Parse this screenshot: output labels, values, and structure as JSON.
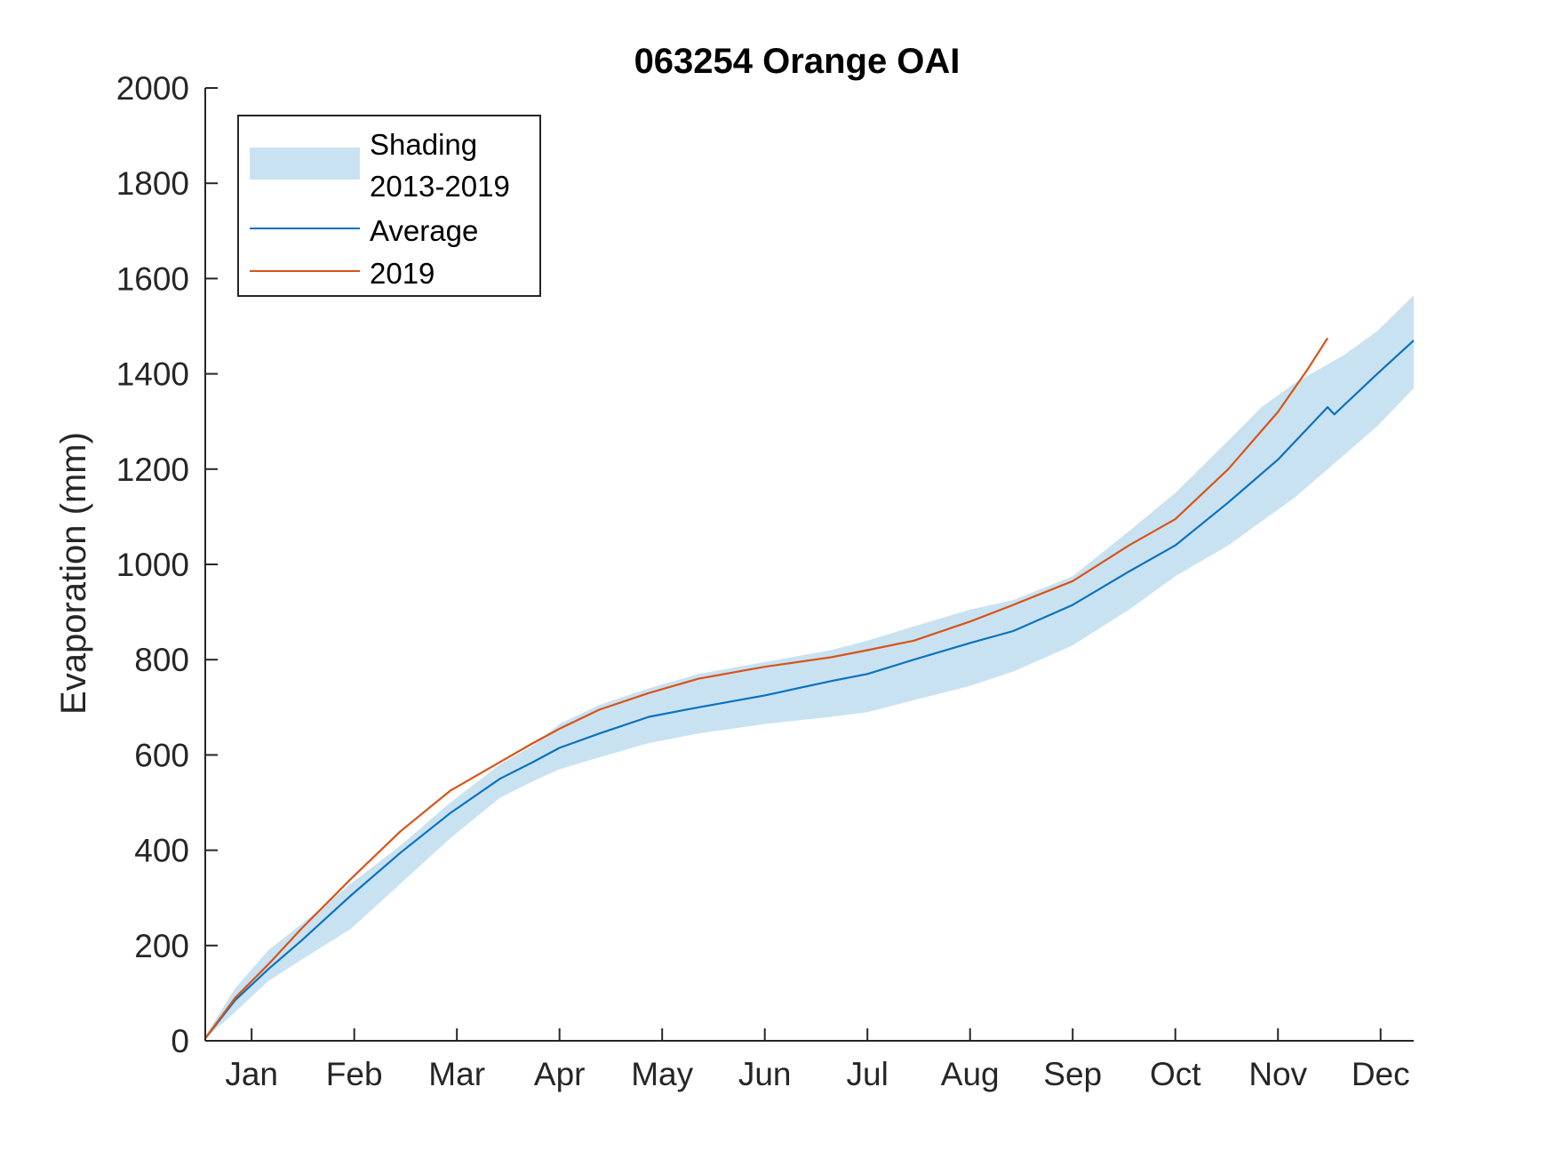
{
  "chart_data": {
    "type": "area",
    "title": "063254 Orange OAI",
    "xlabel": "",
    "ylabel": "Evaporation (mm)",
    "ylim": [
      0,
      2000
    ],
    "yticks": [
      0,
      200,
      400,
      600,
      800,
      1000,
      1200,
      1400,
      1600,
      1800,
      2000
    ],
    "xlim": [
      1,
      366
    ],
    "xticks": [
      {
        "day": 15,
        "label": "Jan"
      },
      {
        "day": 46,
        "label": "Feb"
      },
      {
        "day": 77,
        "label": "Mar"
      },
      {
        "day": 108,
        "label": "Apr"
      },
      {
        "day": 139,
        "label": "May"
      },
      {
        "day": 170,
        "label": "Jun"
      },
      {
        "day": 201,
        "label": "Jul"
      },
      {
        "day": 232,
        "label": "Aug"
      },
      {
        "day": 263,
        "label": "Sep"
      },
      {
        "day": 294,
        "label": "Oct"
      },
      {
        "day": 325,
        "label": "Nov"
      },
      {
        "day": 356,
        "label": "Dec"
      }
    ],
    "grid": false,
    "legend_position": "top-left",
    "legend": [
      "Shading 2013-2019",
      "Average",
      "2019"
    ],
    "colors": {
      "shading": "#c9e2f1",
      "average": "#0a72bd",
      "year2019": "#d95319",
      "axis": "#262626"
    },
    "shading": {
      "name": "Shading 2013-2019",
      "x": [
        1,
        10,
        20,
        30,
        45,
        60,
        75,
        90,
        100,
        108,
        120,
        135,
        150,
        170,
        190,
        201,
        215,
        232,
        245,
        263,
        280,
        294,
        310,
        320,
        330,
        345,
        355,
        366
      ],
      "lower": [
        5,
        60,
        125,
        170,
        235,
        330,
        425,
        510,
        545,
        570,
        595,
        625,
        645,
        665,
        680,
        690,
        715,
        745,
        775,
        830,
        905,
        975,
        1040,
        1090,
        1140,
        1230,
        1290,
        1370
      ],
      "upper": [
        10,
        110,
        190,
        245,
        330,
        410,
        500,
        580,
        620,
        665,
        705,
        740,
        770,
        795,
        820,
        840,
        870,
        905,
        925,
        975,
        1070,
        1150,
        1260,
        1330,
        1380,
        1440,
        1490,
        1565
      ]
    },
    "series": [
      {
        "name": "Average",
        "x": [
          1,
          10,
          20,
          30,
          45,
          60,
          75,
          90,
          100,
          108,
          120,
          135,
          150,
          170,
          190,
          201,
          215,
          232,
          245,
          263,
          280,
          294,
          310,
          325,
          340,
          342,
          355,
          366
        ],
        "y": [
          5,
          85,
          150,
          210,
          305,
          395,
          478,
          550,
          585,
          615,
          645,
          680,
          700,
          725,
          755,
          770,
          800,
          835,
          860,
          915,
          985,
          1040,
          1130,
          1220,
          1330,
          1315,
          1400,
          1470
        ]
      },
      {
        "name": "2019",
        "x": [
          1,
          10,
          20,
          30,
          45,
          60,
          75,
          90,
          100,
          108,
          120,
          135,
          150,
          170,
          190,
          201,
          215,
          232,
          245,
          263,
          280,
          294,
          310,
          325,
          334,
          340
        ],
        "y": [
          5,
          90,
          160,
          235,
          340,
          440,
          525,
          585,
          625,
          655,
          695,
          730,
          760,
          785,
          805,
          820,
          840,
          880,
          915,
          965,
          1040,
          1095,
          1200,
          1320,
          1410,
          1475
        ]
      }
    ]
  }
}
